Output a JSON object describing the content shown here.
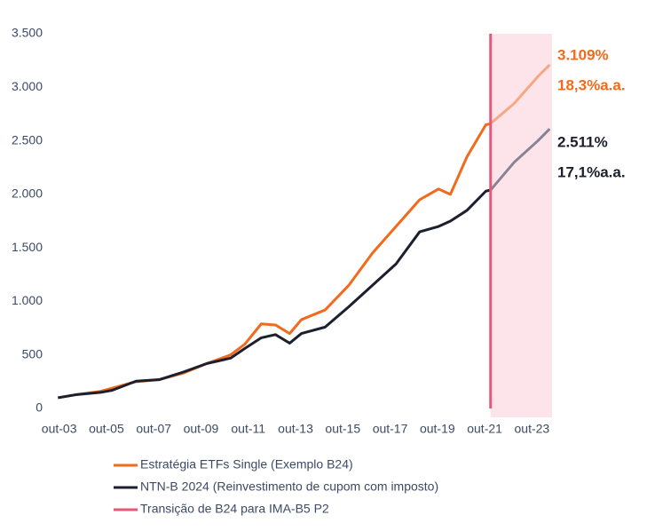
{
  "chart_data": {
    "type": "line",
    "x": [
      2003.7,
      2004.5,
      2005.5,
      2006.0,
      2007.0,
      2008.0,
      2009.0,
      2010.0,
      2011.0,
      2011.6,
      2012.3,
      2012.9,
      2013.5,
      2014.0,
      2015.0,
      2016.0,
      2017.0,
      2018.0,
      2019.0,
      2019.8,
      2020.3,
      2021.0,
      2021.8,
      2022.0,
      2023.0,
      2024.0,
      2024.5
    ],
    "series": [
      {
        "name": "Estratégia ETFs Single (Exemplo B24)",
        "color": "#f26a1b",
        "post_color": "#f5a882",
        "values": [
          100,
          130,
          160,
          190,
          250,
          270,
          330,
          420,
          500,
          600,
          790,
          780,
          700,
          830,
          920,
          1150,
          1450,
          1700,
          1950,
          2050,
          2000,
          2350,
          2650,
          2660,
          2850,
          3100,
          3209
        ]
      },
      {
        "name": "NTN-B 2024 (Reinvestimento de cupom com imposto)",
        "color": "#1c1f2e",
        "post_color": "#8a8393",
        "values": [
          100,
          130,
          150,
          170,
          255,
          270,
          340,
          420,
          470,
          560,
          660,
          690,
          610,
          700,
          760,
          950,
          1150,
          1350,
          1650,
          1700,
          1750,
          1850,
          2030,
          2040,
          2300,
          2500,
          2611
        ]
      }
    ],
    "transition": {
      "name": "Transição de B24 para IMA-B5 P2",
      "x": 2022.0,
      "color": "#e8577a",
      "shade": "#fde4ea"
    },
    "annotations": [
      {
        "text": "3.109%",
        "color": "#f26a1b"
      },
      {
        "text": "18,3%a.a.",
        "color": "#f26a1b"
      },
      {
        "text": "2.511%",
        "color": "#1c1f2e"
      },
      {
        "text": "17,1%a.a.",
        "color": "#1c1f2e"
      }
    ],
    "xlim": [
      2003.5,
      2024.6
    ],
    "xticks": [
      {
        "value": 2003.75,
        "label": "out-03"
      },
      {
        "value": 2005.75,
        "label": "out-05"
      },
      {
        "value": 2007.75,
        "label": "out-07"
      },
      {
        "value": 2009.75,
        "label": "out-09"
      },
      {
        "value": 2011.75,
        "label": "out-11"
      },
      {
        "value": 2013.75,
        "label": "out-13"
      },
      {
        "value": 2015.75,
        "label": "out-15"
      },
      {
        "value": 2017.75,
        "label": "out-17"
      },
      {
        "value": 2019.75,
        "label": "out-19"
      },
      {
        "value": 2021.75,
        "label": "out-21"
      },
      {
        "value": 2023.75,
        "label": "out-23"
      }
    ],
    "ylim": [
      0,
      3500
    ],
    "yticks": [
      0,
      500,
      {
        "value": 1000,
        "label": "1.000"
      },
      {
        "value": 1500,
        "label": "1.500"
      },
      {
        "value": 2000,
        "label": "2.000"
      },
      {
        "value": 2500,
        "label": "2.500"
      },
      {
        "value": 3000,
        "label": "3.000"
      },
      {
        "value": 3500,
        "label": "3.500"
      }
    ],
    "grid": false
  }
}
